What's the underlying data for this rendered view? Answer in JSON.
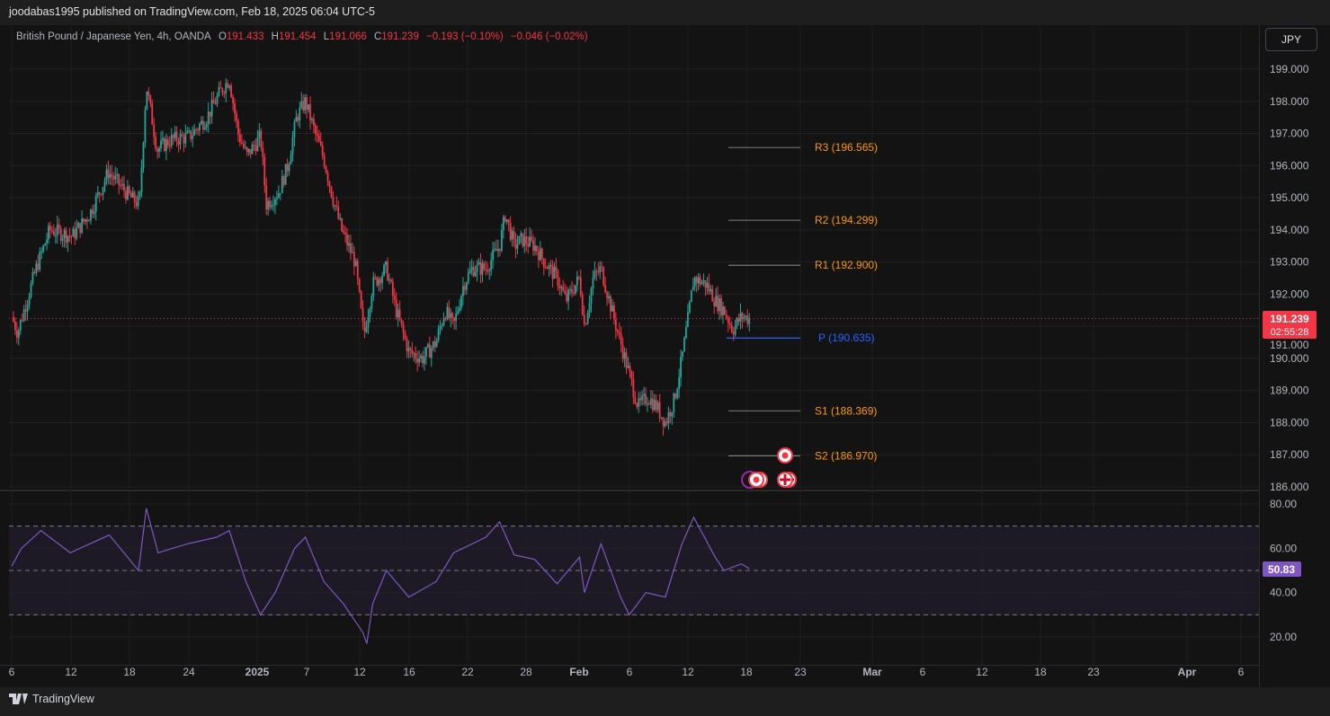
{
  "header": {
    "publisher": "joodabas1995 published on TradingView.com, Feb 18, 2025 06:04 UTC-5"
  },
  "legend": {
    "symbol": "British Pound / Japanese Yen, 4h, OANDA",
    "o_label": "O",
    "o": "191.433",
    "h_label": "H",
    "h": "191.454",
    "l_label": "L",
    "l": "191.066",
    "c_label": "C",
    "c": "191.239",
    "change": "−0.193 (−0.10%)",
    "change2": "−0.046 (−0.02%)"
  },
  "currency_button": "JPY",
  "price_label": {
    "price": "191.239",
    "countdown": "02:55:28"
  },
  "rsi_label": "50.83",
  "footer": {
    "brand": "TradingView"
  },
  "colors": {
    "up": "#26a69a",
    "down": "#f23645",
    "pivot": "#ff9800",
    "pivot_p": "#2962ff",
    "rsi": "#7e57c2"
  },
  "chart_data": [
    {
      "type": "candlestick",
      "title": "British Pound / Japanese Yen, 4h, OANDA",
      "ylim": [
        186,
        199
      ],
      "yticks": [
        "199.000",
        "198.000",
        "197.000",
        "196.000",
        "195.000",
        "194.000",
        "193.000",
        "192.000",
        "191.000",
        "190.000",
        "189.000",
        "188.000",
        "187.000",
        "186.000"
      ],
      "xticks": [
        "6",
        "12",
        "18",
        "24",
        "2025",
        "7",
        "12",
        "16",
        "22",
        "28",
        "Feb",
        "6",
        "12",
        "18",
        "23",
        "Mar",
        "6",
        "12",
        "18",
        "23",
        "Apr",
        "6"
      ],
      "x_unit": "days since Dec 6 2024",
      "close_path": [
        [
          0,
          191.3
        ],
        [
          0.6,
          190.8
        ],
        [
          2.5,
          192.8
        ],
        [
          3.9,
          194
        ],
        [
          6.2,
          193.8
        ],
        [
          8,
          194.5
        ],
        [
          9.9,
          195.8
        ],
        [
          12.2,
          195
        ],
        [
          13.1,
          194.8
        ],
        [
          13.8,
          198.5
        ],
        [
          14.9,
          196.5
        ],
        [
          16.3,
          196.8
        ],
        [
          18.2,
          196.9
        ],
        [
          20,
          197.5
        ],
        [
          21.4,
          198.3
        ],
        [
          22.3,
          198.7
        ],
        [
          23.2,
          197
        ],
        [
          24.1,
          196.3
        ],
        [
          25.5,
          196.9
        ],
        [
          26.1,
          194.8
        ],
        [
          27.4,
          195.2
        ],
        [
          28.3,
          196
        ],
        [
          29.2,
          197.5
        ],
        [
          30.1,
          198
        ],
        [
          31.1,
          197
        ],
        [
          32,
          196.2
        ],
        [
          32.9,
          195
        ],
        [
          33.8,
          194
        ],
        [
          35.2,
          193
        ],
        [
          36.1,
          190.7
        ],
        [
          37,
          192.3
        ],
        [
          38.4,
          192.8
        ],
        [
          39.4,
          191.5
        ],
        [
          40.7,
          190.2
        ],
        [
          42.1,
          190
        ],
        [
          43.5,
          190.5
        ],
        [
          44.4,
          191.5
        ],
        [
          45.3,
          191
        ],
        [
          46.3,
          192.3
        ],
        [
          47.2,
          192.8
        ],
        [
          48.6,
          192.8
        ],
        [
          50,
          193.5
        ],
        [
          50.6,
          194.5
        ],
        [
          51.5,
          193.5
        ],
        [
          52.3,
          193.7
        ],
        [
          53.6,
          193.5
        ],
        [
          54.6,
          193
        ],
        [
          55.9,
          192.5
        ],
        [
          56.8,
          191.8
        ],
        [
          58.2,
          192.5
        ],
        [
          58.7,
          191
        ],
        [
          59.6,
          192.5
        ],
        [
          60.4,
          192.8
        ],
        [
          61.5,
          191.5
        ],
        [
          62.4,
          190.5
        ],
        [
          63.3,
          189.5
        ],
        [
          64.2,
          188.5
        ],
        [
          65.2,
          188.8
        ],
        [
          66.1,
          188.5
        ],
        [
          67,
          188
        ],
        [
          67.9,
          188.7
        ],
        [
          68.7,
          190
        ],
        [
          69.3,
          191.2
        ],
        [
          69.9,
          192.5
        ],
        [
          71.2,
          192.3
        ],
        [
          72.1,
          191.8
        ],
        [
          73,
          191.5
        ],
        [
          73.9,
          190.9
        ],
        [
          74.8,
          191.3
        ],
        [
          75.6,
          191.239
        ]
      ],
      "pivots": [
        {
          "label": "R3 (196.565)",
          "value": 196.565
        },
        {
          "label": "R2 (194.299)",
          "value": 194.299
        },
        {
          "label": "R1 (192.900)",
          "value": 192.9
        },
        {
          "label": "P (190.635)",
          "value": 190.635
        },
        {
          "label": "S1 (188.369)",
          "value": 188.369
        },
        {
          "label": "S2 (186.970)",
          "value": 186.97
        }
      ]
    },
    {
      "type": "line",
      "title": "RSI",
      "ylim": [
        15,
        85
      ],
      "yticks": [
        "80.00",
        "60.00",
        "40.00",
        "20.00"
      ],
      "bands": [
        30,
        50,
        70
      ],
      "values": [
        [
          0,
          52
        ],
        [
          1,
          60
        ],
        [
          3,
          68
        ],
        [
          6,
          58
        ],
        [
          10,
          66
        ],
        [
          13,
          50
        ],
        [
          13.8,
          78
        ],
        [
          15,
          58
        ],
        [
          18,
          62
        ],
        [
          21,
          65
        ],
        [
          22.3,
          68
        ],
        [
          24,
          45
        ],
        [
          25.5,
          30
        ],
        [
          27,
          40
        ],
        [
          29,
          60
        ],
        [
          30.1,
          65
        ],
        [
          32,
          45
        ],
        [
          34,
          35
        ],
        [
          36,
          22
        ],
        [
          36.4,
          17
        ],
        [
          37,
          35
        ],
        [
          38.4,
          50
        ],
        [
          40.7,
          38
        ],
        [
          43.5,
          45
        ],
        [
          45.3,
          58
        ],
        [
          48.6,
          65
        ],
        [
          50,
          72
        ],
        [
          51.5,
          57
        ],
        [
          53.6,
          55
        ],
        [
          55.9,
          44
        ],
        [
          58.2,
          56
        ],
        [
          58.7,
          40
        ],
        [
          60.4,
          62
        ],
        [
          62.4,
          38
        ],
        [
          63.3,
          30
        ],
        [
          65,
          40
        ],
        [
          67,
          38
        ],
        [
          68.7,
          62
        ],
        [
          69.9,
          74
        ],
        [
          72.1,
          56
        ],
        [
          73,
          50
        ],
        [
          74.8,
          53
        ],
        [
          75.6,
          50.83
        ]
      ]
    }
  ]
}
